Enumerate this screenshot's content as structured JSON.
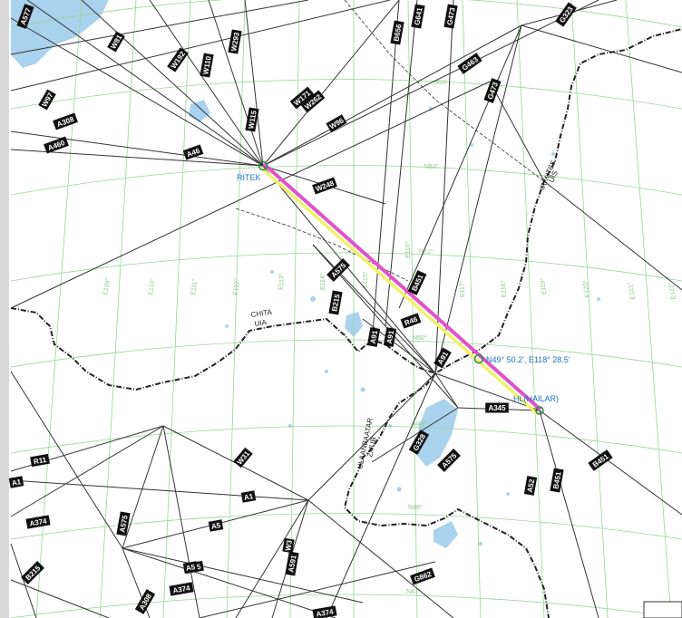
{
  "map": {
    "colors": {
      "grid": "#9ad49a",
      "airway": "#333333",
      "border": "#222222",
      "water": "#a9d2ee",
      "label_blue": "#1a73c9",
      "route_pink": "#e052c8",
      "route_yellow": "#f3f06a"
    },
    "waypoints": {
      "ritek": "RITEK",
      "hailar": "HL(HAILAR)",
      "coordinate": "N49° 50.2', E118° 28.5'"
    },
    "fir_labels": {
      "chita": "CHITA",
      "chita_uia": "UIA",
      "ulaanbaatar": "ULAANBAATAR",
      "ulaanbaatar_code": "ZMUB",
      "irkutsk": "IRKUTSK",
      "irkutsk_code": "UIS"
    },
    "longitude_labels": [
      "E109°",
      "E110°",
      "E111°",
      "E112°",
      "E113°",
      "E114°",
      "E115°",
      "E116°",
      "E117°",
      "E118°",
      "E119°",
      "E120°",
      "E121°",
      "E122°"
    ],
    "latitude_labels": [
      "N53°",
      "N52°",
      "N51°",
      "N50°",
      "N49°",
      "N48°",
      "N47°"
    ],
    "route_labels": [
      "A577",
      "W97",
      "A308",
      "W81",
      "A460",
      "W110",
      "A46",
      "W192",
      "W293",
      "W115",
      "W171",
      "W248",
      "W96",
      "B656",
      "G641",
      "G473",
      "G463",
      "G473",
      "G323",
      "W262",
      "A575",
      "B451",
      "A91",
      "B215",
      "A91",
      "A345",
      "G328",
      "B451",
      "A575",
      "R46",
      "A91",
      "W31",
      "R11",
      "A1",
      "A1",
      "A374",
      "A575",
      "A5",
      "A55",
      "A5",
      "W3",
      "A374",
      "B215",
      "A591",
      "A374",
      "A308",
      "G862",
      "B451",
      "A52"
    ]
  }
}
